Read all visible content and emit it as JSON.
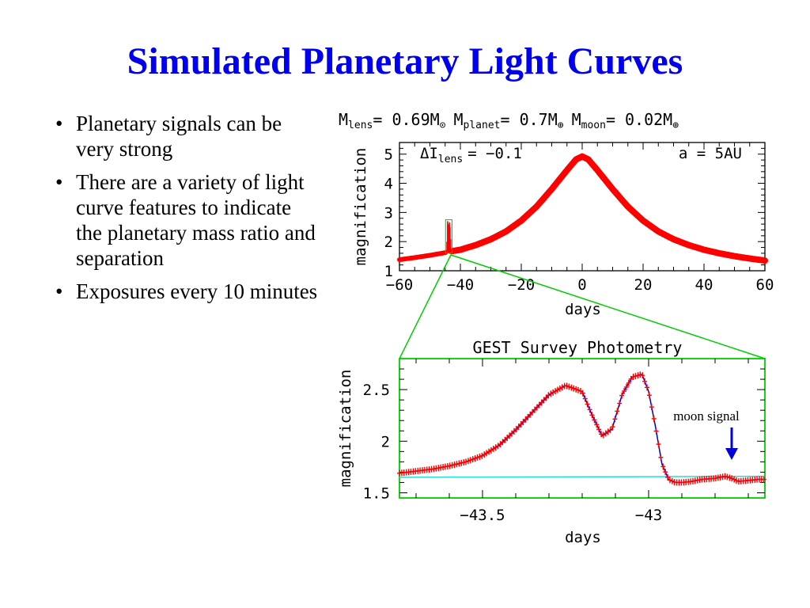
{
  "slide": {
    "title": "Simulated Planetary Light Curves",
    "bullets": [
      "Planetary signals can be very strong",
      "There are a variety of light curve features to indicate the planetary mass ratio and separation",
      "Exposures every 10 minutes"
    ]
  },
  "colors": {
    "title": "#0000ee",
    "data_points": "#ff0000",
    "model_curve": "#0000cc",
    "baseline": "#22dddd",
    "zoom_lines": "#00cc00",
    "arrow": "#0000dd",
    "frame": "#000000"
  },
  "chart_data": [
    {
      "type": "line",
      "header": {
        "m_lens_label": "M",
        "m_lens_sub": "lens",
        "m_lens_value": "= 0.69M",
        "m_lens_sup": "⊙",
        "m_planet_label": "M",
        "m_planet_sub": "planet",
        "m_planet_value": "= 0.7M",
        "m_planet_sup": "⊕",
        "m_moon_label": "M",
        "m_moon_sub": "moon",
        "m_moon_value": "= 0.02M",
        "m_moon_sup": "⊕"
      },
      "annotation_left_symbol": "ΔI",
      "annotation_left_sub": "lens",
      "annotation_left_value": "= −0.1",
      "annotation_right": "a = 5AU",
      "xlabel": "days",
      "ylabel": "magnification",
      "xlim": [
        -60,
        60
      ],
      "ylim": [
        1,
        5.4
      ],
      "xticks": [
        -60,
        -40,
        -20,
        0,
        20,
        40,
        60
      ],
      "xtick_labels": [
        "−60",
        "−40",
        "−20",
        "0",
        "20",
        "40",
        "60"
      ],
      "yticks": [
        1,
        2,
        3,
        4,
        5
      ],
      "ytick_labels": [
        "1",
        "2",
        "3",
        "4",
        "5"
      ],
      "series": [
        {
          "x": [
            -60,
            -55,
            -50,
            -45,
            -44.5,
            -44.2,
            -43.9,
            -43.5,
            -43,
            -40,
            -35,
            -30,
            -25,
            -20,
            -15,
            -10,
            -5,
            -2,
            0,
            2,
            5,
            10,
            15,
            20,
            25,
            30,
            35,
            40,
            45,
            50,
            55,
            60
          ],
          "y": [
            1.38,
            1.45,
            1.53,
            1.62,
            1.64,
            2.7,
            2.55,
            2.7,
            1.67,
            1.72,
            1.88,
            2.08,
            2.35,
            2.72,
            3.2,
            3.8,
            4.45,
            4.82,
            4.92,
            4.82,
            4.45,
            3.8,
            3.2,
            2.72,
            2.35,
            2.08,
            1.88,
            1.72,
            1.6,
            1.5,
            1.42,
            1.35
          ]
        }
      ],
      "grid": false
    },
    {
      "type": "line",
      "title": "GEST Survey Photometry",
      "xlabel": "days",
      "ylabel": "magnification",
      "xlim": [
        -43.75,
        -42.65
      ],
      "ylim": [
        1.45,
        2.8
      ],
      "xticks": [
        -43.5,
        -43
      ],
      "xtick_labels": [
        "−43.5",
        "−43"
      ],
      "yticks": [
        1.5,
        2,
        2.5
      ],
      "ytick_labels": [
        "1.5",
        "2",
        "2.5"
      ],
      "annotation": "moon signal",
      "annotation_x": -42.75,
      "series": [
        {
          "name": "data",
          "x": [
            -43.75,
            -43.7,
            -43.65,
            -43.6,
            -43.55,
            -43.5,
            -43.45,
            -43.4,
            -43.35,
            -43.3,
            -43.25,
            -43.2,
            -43.17,
            -43.14,
            -43.11,
            -43.08,
            -43.05,
            -43.02,
            -43.0,
            -42.98,
            -42.96,
            -42.94,
            -42.92,
            -42.9,
            -42.87,
            -42.84,
            -42.8,
            -42.77,
            -42.75,
            -42.73,
            -42.7,
            -42.67,
            -42.65
          ],
          "y": [
            1.69,
            1.71,
            1.73,
            1.76,
            1.8,
            1.86,
            1.96,
            2.11,
            2.28,
            2.45,
            2.54,
            2.48,
            2.25,
            2.05,
            2.12,
            2.45,
            2.62,
            2.65,
            2.48,
            2.15,
            1.78,
            1.63,
            1.6,
            1.6,
            1.61,
            1.63,
            1.64,
            1.66,
            1.64,
            1.61,
            1.62,
            1.63,
            1.63
          ]
        },
        {
          "name": "baseline",
          "x": [
            -43.75,
            -42.65
          ],
          "y": [
            1.65,
            1.66
          ]
        }
      ],
      "grid": false
    }
  ]
}
